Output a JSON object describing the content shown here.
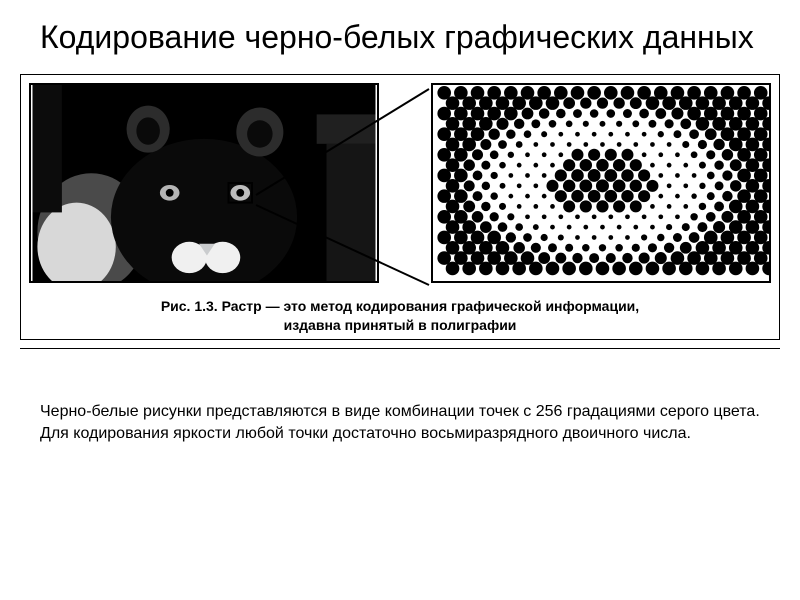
{
  "title": "Кодирование черно-белых графических данных",
  "figure": {
    "caption_label": "Рис. 1.3.",
    "caption_text_line1": "Растр — это метод кодирования графической информации,",
    "caption_text_line2": "издавна принятый в полиграфии",
    "left_panel": {
      "type": "image-bw-photo",
      "bg": "#000000",
      "fg": "#ffffff"
    },
    "right_panel": {
      "type": "halftone-raster",
      "bg": "#ffffff",
      "dot_color": "#000000",
      "rows": 18,
      "cols": 20,
      "base_radius": 4,
      "spacing": 17
    },
    "connector_color": "#000000"
  },
  "body_text": "Черно-белые рисунки представляются в виде комбинации точек с 256 градациями серого цвета. Для кодирования яркости любой точки  достаточно восьмиразрядного двоичного числа.",
  "colors": {
    "page_bg": "#ffffff",
    "text": "#000000",
    "border": "#000000"
  },
  "fonts": {
    "title_size_pt": 32,
    "caption_size_pt": 14,
    "body_size_pt": 16
  }
}
